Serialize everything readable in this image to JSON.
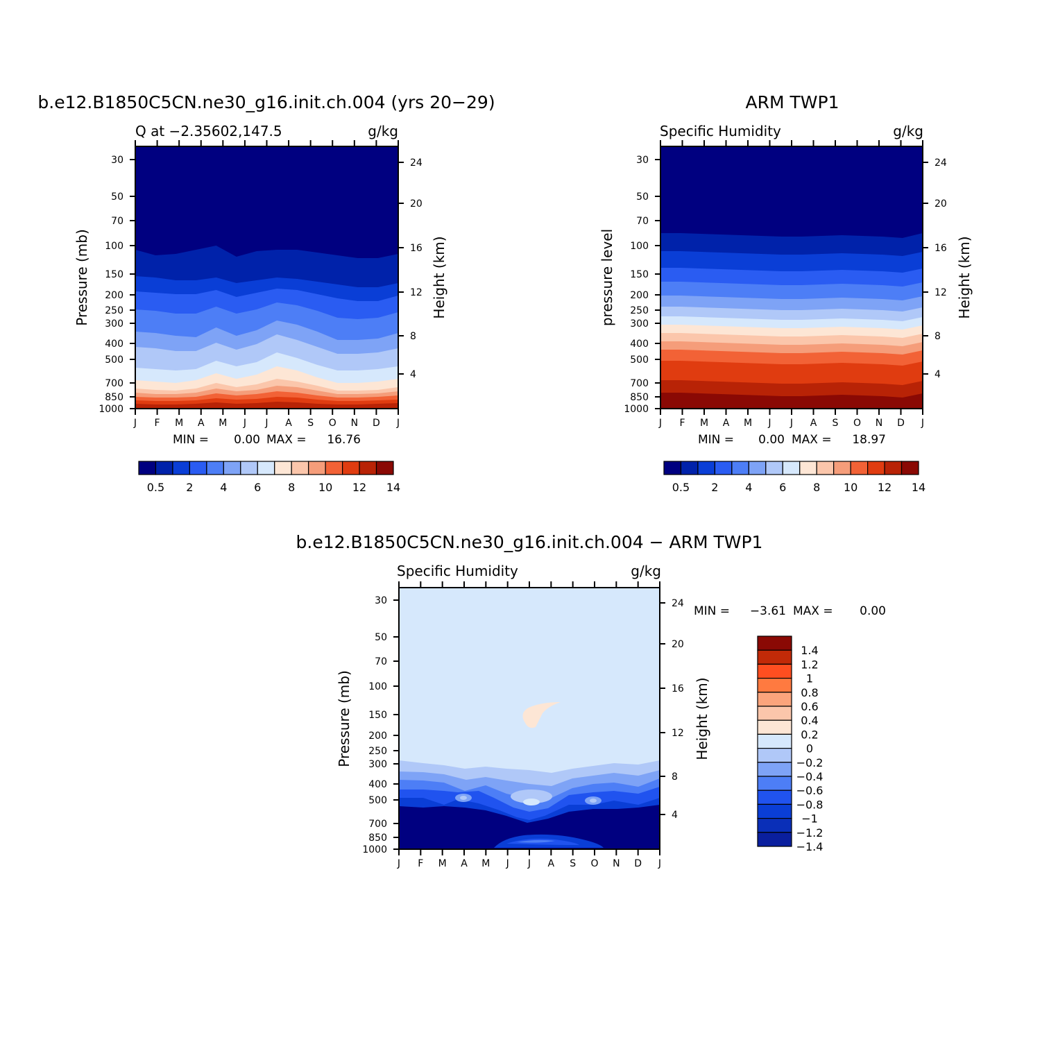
{
  "colors": {
    "abs_levels": [
      "#000080",
      "#0022aa",
      "#0a3ed6",
      "#2a5cf2",
      "#4d7ef6",
      "#7ea3f6",
      "#b0c8f8",
      "#d6e8fc",
      "#fde6d5",
      "#fbc6ab",
      "#f59d7a",
      "#f26236",
      "#e03c10",
      "#b82306",
      "#8a0904"
    ],
    "diff_levels": [
      "#0a1f9e",
      "#0a2fb8",
      "#0a3ed6",
      "#2053ef",
      "#4d7ef6",
      "#7ea3f6",
      "#b0c8f8",
      "#d6e8fc",
      "#fde6d5",
      "#fbc6ab",
      "#fba47c",
      "#ff7a40",
      "#ff4e20",
      "#c22a08",
      "#8a0904"
    ]
  },
  "chart_data": [
    {
      "type": "heatmap",
      "title": "b.e12.B1850C5CN.ne30_g16.init.ch.004 (yrs 20−29)",
      "subtitle_left": "Q at −2.35602,147.5",
      "subtitle_right": "g/kg",
      "ylabel": "Pressure (mb)",
      "ylabel_right": "Height (km)",
      "x_ticks": [
        "J",
        "F",
        "M",
        "A",
        "M",
        "J",
        "J",
        "A",
        "S",
        "O",
        "N",
        "D",
        "J"
      ],
      "y_ticks": [
        "30",
        "50",
        "70",
        "100",
        "150",
        "200",
        "250",
        "300",
        "400",
        "500",
        "700",
        "850",
        "1000"
      ],
      "y_ticks_right": [
        "24",
        "20",
        "16",
        "12",
        "8",
        "4"
      ],
      "min_label": "MIN =",
      "min_value": "0.00",
      "max_label": "MAX =",
      "max_value": "16.76",
      "min": 0.0,
      "max": 16.76,
      "colorbar_labels": [
        "0.5",
        "2",
        "4",
        "6",
        "8",
        "10",
        "12",
        "14"
      ],
      "contour_boundaries": [
        [
          360,
          368,
          366,
          360,
          354,
          370,
          362,
          360,
          360,
          364,
          368,
          372,
          372,
          366
        ],
        [
          398,
          400,
          404,
          404,
          400,
          408,
          404,
          400,
          402,
          406,
          410,
          414,
          414,
          408
        ],
        [
          420,
          422,
          424,
          424,
          418,
          428,
          422,
          416,
          418,
          424,
          430,
          434,
          434,
          426
        ],
        [
          446,
          448,
          452,
          452,
          442,
          452,
          446,
          436,
          440,
          448,
          458,
          460,
          458,
          450
        ],
        [
          478,
          480,
          484,
          486,
          472,
          484,
          476,
          462,
          468,
          478,
          490,
          490,
          488,
          480
        ],
        [
          500,
          502,
          506,
          506,
          494,
          504,
          496,
          482,
          490,
          500,
          510,
          510,
          508,
          502
        ],
        [
          530,
          532,
          534,
          532,
          520,
          528,
          522,
          508,
          516,
          526,
          534,
          534,
          532,
          528
        ],
        [
          548,
          550,
          552,
          548,
          538,
          546,
          540,
          528,
          534,
          544,
          552,
          552,
          550,
          546
        ],
        [
          560,
          562,
          563,
          560,
          552,
          558,
          554,
          546,
          550,
          556,
          563,
          563,
          562,
          558
        ],
        [
          566,
          568,
          568,
          566,
          560,
          564,
          562,
          556,
          558,
          563,
          568,
          568,
          567,
          564
        ],
        [
          572,
          573,
          573,
          572,
          567,
          570,
          568,
          564,
          566,
          570,
          573,
          573,
          572,
          570
        ],
        [
          577,
          578,
          578,
          577,
          574,
          576,
          575,
          572,
          573,
          576,
          578,
          578,
          577,
          576
        ],
        [
          582,
          583,
          583,
          582,
          580,
          582,
          581,
          579,
          580,
          582,
          583,
          583,
          582,
          581
        ]
      ]
    },
    {
      "type": "heatmap",
      "title": "ARM TWP1",
      "subtitle_left": "Specific Humidity",
      "subtitle_right": "g/kg",
      "ylabel": "pressure level",
      "ylabel_right": "Height (km)",
      "x_ticks": [
        "J",
        "F",
        "M",
        "A",
        "M",
        "J",
        "J",
        "A",
        "S",
        "O",
        "N",
        "D",
        "J"
      ],
      "y_ticks": [
        "30",
        "50",
        "70",
        "100",
        "150",
        "200",
        "250",
        "300",
        "400",
        "500",
        "700",
        "850",
        "1000"
      ],
      "y_ticks_right": [
        "24",
        "20",
        "16",
        "12",
        "8",
        "4"
      ],
      "min_label": "MIN =",
      "min_value": "0.00",
      "max_label": "MAX =",
      "max_value": "18.97",
      "min": 0.0,
      "max": 18.97,
      "colorbar_labels": [
        "0.5",
        "2",
        "4",
        "6",
        "8",
        "10",
        "12",
        "14"
      ],
      "contour_boundaries": [
        [
          336,
          336,
          337,
          338,
          339,
          340,
          341,
          341,
          340,
          339,
          340,
          341,
          343,
          336
        ],
        [
          362,
          362,
          363,
          364,
          365,
          366,
          367,
          367,
          366,
          365,
          366,
          367,
          369,
          363
        ],
        [
          386,
          386,
          387,
          388,
          389,
          390,
          391,
          391,
          390,
          389,
          390,
          391,
          393,
          387
        ],
        [
          406,
          406,
          407,
          408,
          409,
          410,
          411,
          411,
          410,
          409,
          410,
          411,
          413,
          407
        ],
        [
          426,
          426,
          427,
          428,
          429,
          430,
          431,
          431,
          430,
          429,
          430,
          431,
          433,
          427
        ],
        [
          442,
          442,
          443,
          444,
          445,
          446,
          447,
          447,
          446,
          445,
          446,
          447,
          449,
          443
        ],
        [
          456,
          456,
          457,
          458,
          459,
          460,
          461,
          461,
          460,
          459,
          460,
          461,
          463,
          457
        ],
        [
          468,
          468,
          469,
          470,
          471,
          472,
          473,
          473,
          472,
          471,
          472,
          473,
          475,
          469
        ],
        [
          480,
          480,
          481,
          482,
          483,
          484,
          485,
          485,
          484,
          483,
          484,
          485,
          487,
          481
        ],
        [
          492,
          492,
          493,
          494,
          495,
          496,
          497,
          497,
          496,
          495,
          496,
          497,
          499,
          493
        ],
        [
          504,
          504,
          505,
          506,
          507,
          508,
          509,
          509,
          508,
          507,
          508,
          509,
          511,
          505
        ],
        [
          520,
          520,
          521,
          522,
          523,
          524,
          525,
          525,
          524,
          523,
          524,
          525,
          527,
          521
        ],
        [
          548,
          548,
          549,
          550,
          551,
          552,
          553,
          553,
          552,
          551,
          552,
          553,
          555,
          549
        ],
        [
          566,
          566,
          567,
          568,
          569,
          570,
          571,
          571,
          570,
          569,
          570,
          571,
          573,
          567
        ]
      ]
    },
    {
      "type": "heatmap",
      "title": "b.e12.B1850C5CN.ne30_g16.init.ch.004 − ARM TWP1",
      "subtitle_left": "Specific Humidity",
      "subtitle_right": "g/kg",
      "ylabel": "Pressure (mb)",
      "ylabel_right": "Height (km)",
      "x_ticks": [
        "J",
        "F",
        "M",
        "A",
        "M",
        "J",
        "J",
        "A",
        "S",
        "O",
        "N",
        "D",
        "J"
      ],
      "y_ticks": [
        "30",
        "50",
        "70",
        "100",
        "150",
        "200",
        "250",
        "300",
        "400",
        "500",
        "700",
        "850",
        "1000"
      ],
      "y_ticks_right": [
        "24",
        "20",
        "16",
        "12",
        "8",
        "4"
      ],
      "min_label": "MIN =",
      "min_value": "−3.61",
      "max_label": "MAX =",
      "max_value": "0.00",
      "min": -3.61,
      "max": 0.0,
      "colorbar_labels": [
        "1.4",
        "1.2",
        "1",
        "0.8",
        "0.6",
        "0.4",
        "0.2",
        "0",
        "−0.2",
        "−0.4",
        "−0.6",
        "−0.8",
        "−1",
        "−1.2",
        "−1.4"
      ]
    }
  ]
}
